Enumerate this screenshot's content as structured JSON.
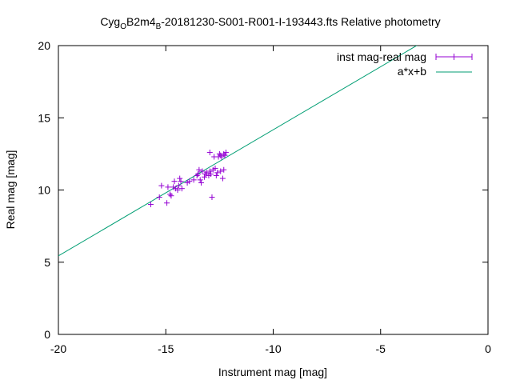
{
  "chart_data": {
    "type": "scatter",
    "title": {
      "prefix": "Cyg",
      "sub1": "O",
      "mid": "B2m4",
      "sub2": "B",
      "suffix": "-20181230-S001-R001-I-193443.fts Relative photometry"
    },
    "xlabel": "Instrument mag [mag]",
    "ylabel": "Real mag [mag]",
    "xlim": [
      -20,
      0
    ],
    "ylim": [
      0,
      20
    ],
    "xticks": [
      -20,
      -15,
      -10,
      -5,
      0
    ],
    "yticks": [
      0,
      5,
      10,
      15,
      20
    ],
    "legend_position": "top-right",
    "colors": {
      "points": "#9400d3",
      "fit": "#009e73",
      "axes": "#000000"
    },
    "series": [
      {
        "name": "inst mag-real mag",
        "kind": "points-with-errorbars",
        "points": [
          [
            -15.7,
            9.0
          ],
          [
            -15.3,
            9.5
          ],
          [
            -15.2,
            10.3
          ],
          [
            -14.95,
            9.1
          ],
          [
            -14.9,
            10.2
          ],
          [
            -14.8,
            9.7
          ],
          [
            -14.75,
            9.6
          ],
          [
            -14.65,
            10.2
          ],
          [
            -14.6,
            10.6
          ],
          [
            -14.55,
            10.1
          ],
          [
            -14.45,
            10.0
          ],
          [
            -14.4,
            10.3
          ],
          [
            -14.35,
            10.8
          ],
          [
            -14.3,
            10.6
          ],
          [
            -14.25,
            10.1
          ],
          [
            -14.0,
            10.5
          ],
          [
            -13.9,
            10.6
          ],
          [
            -13.7,
            10.7
          ],
          [
            -13.55,
            11.0
          ],
          [
            -13.5,
            11.1
          ],
          [
            -13.45,
            11.4
          ],
          [
            -13.4,
            10.7
          ],
          [
            -13.35,
            10.5
          ],
          [
            -13.3,
            11.3
          ],
          [
            -13.2,
            10.9
          ],
          [
            -13.15,
            11.1
          ],
          [
            -13.1,
            11.2
          ],
          [
            -13.0,
            11.0
          ],
          [
            -12.95,
            11.3
          ],
          [
            -12.95,
            12.6
          ],
          [
            -12.9,
            11.1
          ],
          [
            -12.85,
            9.5
          ],
          [
            -12.8,
            11.4
          ],
          [
            -12.75,
            12.3
          ],
          [
            -12.7,
            11.5
          ],
          [
            -12.65,
            11.0
          ],
          [
            -12.6,
            11.2
          ],
          [
            -12.55,
            12.3
          ],
          [
            -12.5,
            12.5
          ],
          [
            -12.45,
            11.3
          ],
          [
            -12.45,
            12.4
          ],
          [
            -12.4,
            12.3
          ],
          [
            -12.35,
            10.8
          ],
          [
            -12.3,
            12.5
          ],
          [
            -12.3,
            11.4
          ],
          [
            -12.25,
            12.4
          ],
          [
            -12.2,
            12.6
          ]
        ]
      },
      {
        "name": "a*x+b",
        "kind": "line",
        "a": 0.873,
        "b": 22.9
      }
    ]
  }
}
